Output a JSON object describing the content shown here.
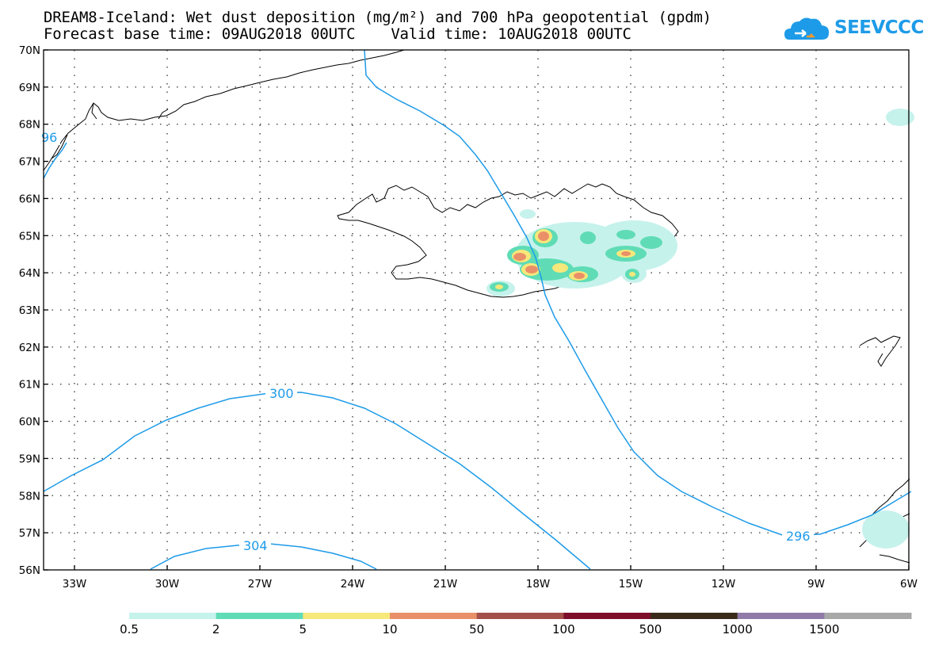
{
  "title": {
    "line1": "DREAM8-Iceland: Wet dust deposition (mg/m²) and 700 hPa geopotential (gpdm)",
    "line2": "Forecast base time: 09AUG2018 00UTC    Valid time: 10AUG2018 00UTC"
  },
  "logo": {
    "text": "SEEVCCC",
    "color": "#1e9be8"
  },
  "map": {
    "lon_range": [
      -34,
      -6
    ],
    "lat_range": [
      56,
      70
    ],
    "lon_ticks": [
      "33W",
      "30W",
      "27W",
      "24W",
      "21W",
      "18W",
      "15W",
      "12W",
      "9W",
      "6W"
    ],
    "lat_ticks": [
      "70N",
      "69N",
      "68N",
      "67N",
      "66N",
      "65N",
      "64N",
      "63N",
      "62N",
      "61N",
      "60N",
      "59N",
      "58N",
      "57N",
      "56N"
    ],
    "contour_color": "#1e9be8",
    "contour_labels": [
      "96",
      "300",
      "304",
      "296"
    ]
  },
  "colorbar": {
    "colors": [
      "#c6f2ec",
      "#5fdcb5",
      "#f6e87a",
      "#ea9068",
      "#a4504a",
      "#7c0e2a",
      "#3a2a18",
      "#8f7aa8",
      "#a8a8a8"
    ],
    "labels": [
      "0.5",
      "2",
      "5",
      "10",
      "50",
      "100",
      "500",
      "1000",
      "1500"
    ]
  }
}
